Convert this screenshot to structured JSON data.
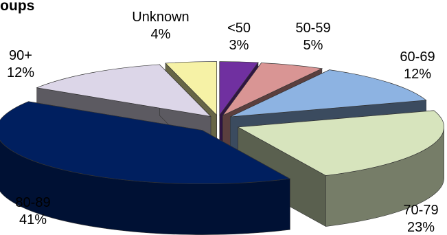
{
  "chart_data": {
    "type": "pie",
    "title": "roups",
    "slices": [
      {
        "label": "<50",
        "value": 3,
        "text": "3%",
        "color": "#7030a0"
      },
      {
        "label": "50-59",
        "value": 5,
        "text": "5%",
        "color": "#d99594"
      },
      {
        "label": "60-69",
        "value": 12,
        "text": "12%",
        "color": "#8db3e2"
      },
      {
        "label": "70-79",
        "value": 23,
        "text": "23%",
        "color": "#d7e4bd"
      },
      {
        "label": "80-89",
        "value": 41,
        "text": "41%",
        "color": "#001f5f"
      },
      {
        "label": "90+",
        "value": 12,
        "text": "12%",
        "color": "#dcd6e8"
      },
      {
        "label": "Unknown",
        "value": 4,
        "text": "4%",
        "color": "#f6f2a6"
      }
    ],
    "legend": "none",
    "style": "3d-exploded"
  }
}
